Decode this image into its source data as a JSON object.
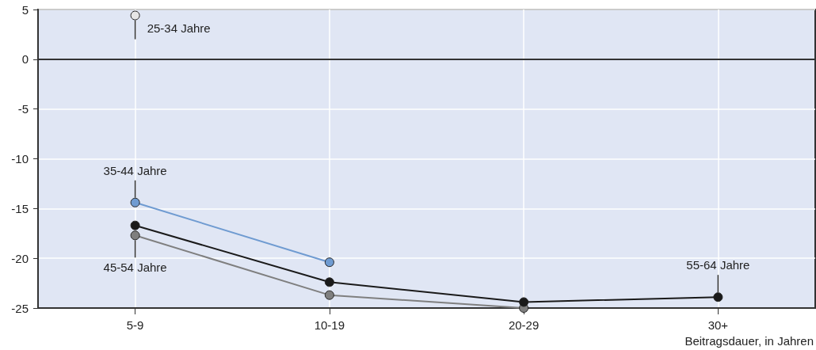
{
  "chart_data": {
    "type": "line",
    "xlabel": "Beitragsdauer, in Jahren",
    "categories": [
      "5-9",
      "10-19",
      "20-29",
      "30+"
    ],
    "series": [
      {
        "name": "25-34 Jahre",
        "color": "#e6e6e6",
        "values": [
          4.4,
          null,
          null,
          null
        ]
      },
      {
        "name": "35-44 Jahre",
        "color": "#6f9bd1",
        "values": [
          -14.4,
          -20.4,
          null,
          null
        ]
      },
      {
        "name": "45-54 Jahre",
        "color": "#7f7f7f",
        "values": [
          -17.7,
          -23.7,
          -25,
          null
        ]
      },
      {
        "name": "55-64 Jahre",
        "color": "#1a1a1a",
        "values": [
          -16.7,
          -22.4,
          -24.4,
          -23.9
        ]
      }
    ],
    "ylim": [
      -25,
      5
    ],
    "yticks": [
      -25,
      -20,
      -15,
      -10,
      -5,
      0,
      5
    ],
    "grid": true,
    "legend": false,
    "marker": "circle",
    "line_style": "solid",
    "ref_lines": [
      {
        "axis": "y",
        "value": 0,
        "color": "#333333"
      }
    ]
  }
}
